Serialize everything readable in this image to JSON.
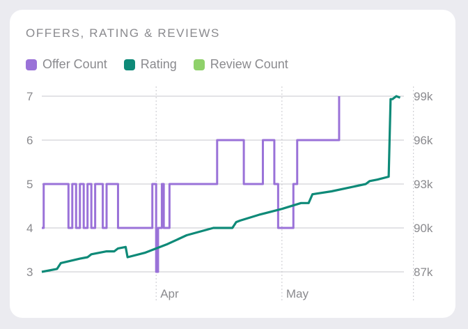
{
  "chart_data": {
    "type": "line",
    "title": "OFFERS, RATING & REVIEWS",
    "legend": [
      {
        "name": "Offer Count",
        "color": "#9a72d8"
      },
      {
        "name": "Rating",
        "color": "#0e8a78"
      },
      {
        "name": "Review Count",
        "color": "#8fd16a"
      }
    ],
    "left_axis": {
      "ticks": [
        "7",
        "6",
        "5",
        "4",
        "3"
      ],
      "range": [
        3,
        7
      ]
    },
    "right_axis": {
      "ticks": [
        "99k",
        "96k",
        "93k",
        "90k",
        "87k"
      ],
      "range": [
        87000,
        99000
      ]
    },
    "x_axis": {
      "ticks": [
        "Apr",
        "May"
      ],
      "range": [
        0,
        100
      ]
    },
    "grid": true,
    "series": [
      {
        "name": "Offer Count",
        "axis": "left",
        "color": "#9a72d8",
        "step": true,
        "x": [
          0,
          0.5,
          7,
          8,
          9,
          10,
          11,
          12,
          13,
          14,
          16,
          17,
          20,
          29,
          30,
          30.5,
          31.5,
          32,
          33.5,
          46,
          53,
          58,
          61,
          62,
          65,
          66,
          67,
          77,
          78
        ],
        "y": [
          4,
          5,
          4,
          5,
          4,
          5,
          4,
          5,
          4,
          5,
          4,
          5,
          4,
          5,
          3,
          4,
          5,
          4,
          5,
          6,
          5,
          6,
          5,
          4,
          4,
          5,
          6,
          6,
          7
        ]
      },
      {
        "name": "Rating",
        "axis": "right",
        "color": "#0e8a78",
        "x": [
          0,
          4,
          5,
          10,
          12,
          13,
          17,
          19,
          20,
          22,
          22.5,
          27,
          33,
          38,
          45,
          50,
          51,
          52,
          57,
          63,
          68,
          70,
          71,
          76,
          85,
          86,
          88,
          91,
          91.5,
          92,
          93,
          94
        ],
        "y": [
          87000,
          87200,
          87600,
          87900,
          88000,
          88200,
          88400,
          88400,
          88600,
          88700,
          88000,
          88300,
          88900,
          89500,
          90000,
          90000,
          90400,
          90500,
          90900,
          91300,
          91700,
          91700,
          92300,
          92500,
          93000,
          93200,
          93300,
          93500,
          98800,
          98800,
          99000,
          98900
        ]
      },
      {
        "name": "Review Count",
        "axis": "right",
        "color": "#8fd16a",
        "x": [],
        "y": []
      }
    ]
  }
}
